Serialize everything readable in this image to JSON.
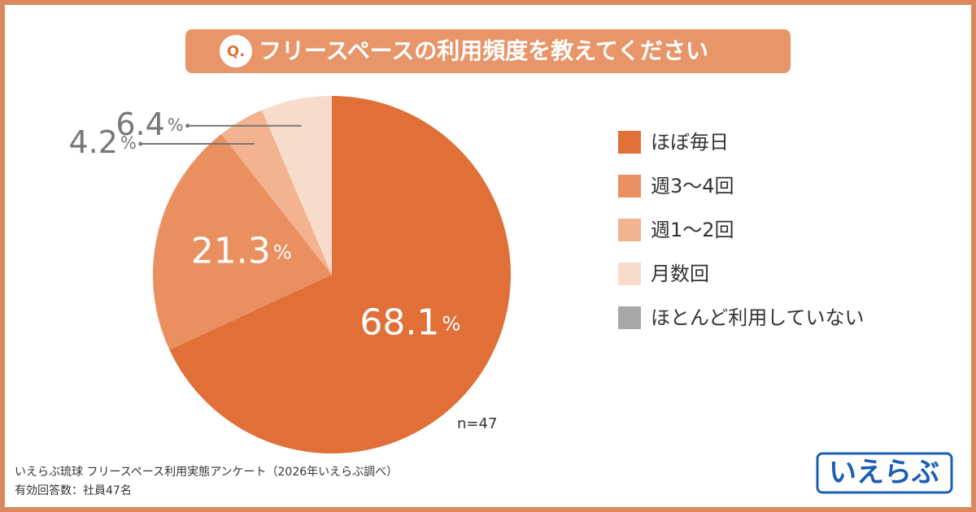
{
  "chart_data": {
    "type": "pie",
    "title_badge": "Q.",
    "title": "フリースペースの利用頻度を教えてください",
    "categories": [
      "ほぼ毎日",
      "週3〜4回",
      "週1〜2回",
      "月数回",
      "ほとんど利用していない"
    ],
    "values": [
      68.1,
      21.3,
      4.2,
      6.4,
      0
    ],
    "unit": "%",
    "colors": [
      "#e07038",
      "#ea9060",
      "#f3b391",
      "#f7dccb",
      "#a8a7a8"
    ],
    "annotation": "n=47",
    "notes": [
      "いえらぶ琉球 フリースペース利用実態アンケート（2026年いえらぶ調べ）",
      "有効回答数：社員47名"
    ],
    "logo": "いえらぶ"
  }
}
